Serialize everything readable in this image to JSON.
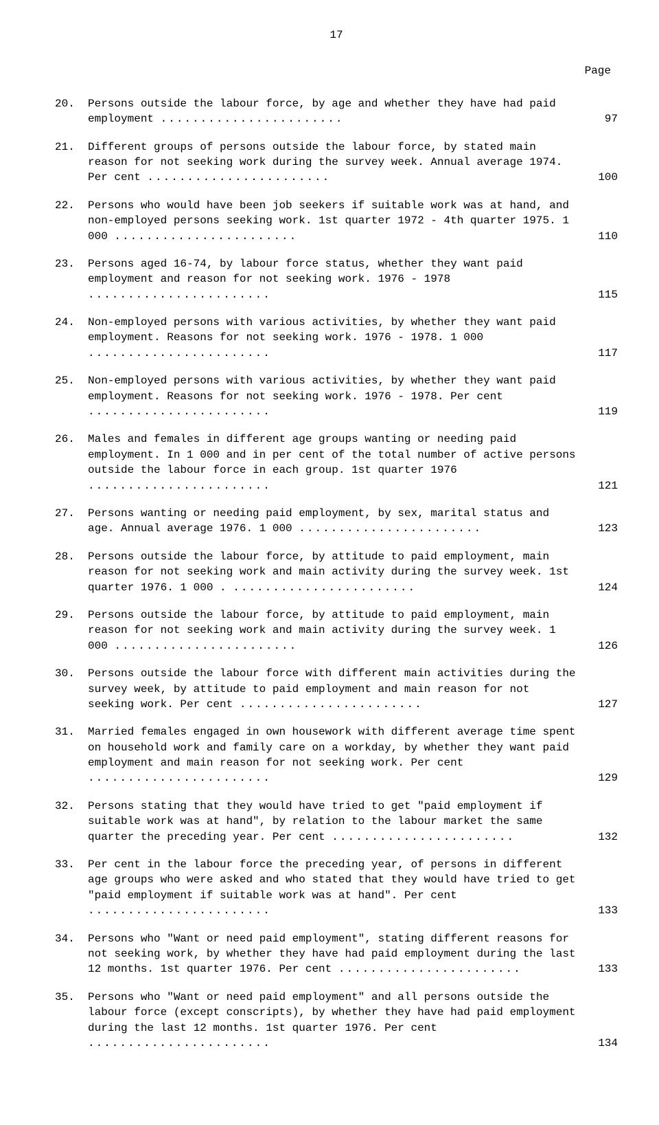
{
  "page_number_top": "17",
  "page_header": "Page",
  "entries": [
    {
      "num": "20.",
      "text": "Persons outside the labour force, by age and whether they have had paid employment",
      "page": "97"
    },
    {
      "num": "21.",
      "text": "Different groups of persons outside the labour force, by stated main reason for not seeking work during the survey week.  Annual average 1974.  Per cent",
      "page": "100"
    },
    {
      "num": "22.",
      "text": "Persons who would have been job seekers if suitable work was at hand, and non-employed persons seeking work.  1st quarter 1972 - 4th quarter 1975.  1 000",
      "page": "110"
    },
    {
      "num": "23.",
      "text": "Persons aged 16-74, by labour force status, whether they want paid employment and reason for not seeking work. 1976 - 1978",
      "page": "115"
    },
    {
      "num": "24.",
      "text": "Non-employed persons with various activities, by whether they want paid employment.  Reasons for not seeking work. 1976 - 1978.  1 000",
      "page": "117"
    },
    {
      "num": "25.",
      "text": "Non-employed persons with various activities, by whether they want paid employment.  Reasons for not seeking work. 1976 - 1978.  Per cent",
      "page": "119"
    },
    {
      "num": "26.",
      "text": "Males and females in different age groups wanting or needing paid employment.  In 1 000 and in per cent of the total number of active persons outside the labour force in each group.  1st quarter 1976",
      "page": "121"
    },
    {
      "num": "27.",
      "text": "Persons wanting or needing paid employment, by sex, marital status and age.  Annual average 1976.  1 000",
      "page": "123"
    },
    {
      "num": "28.",
      "text": "Persons outside the labour force, by attitude to paid employment, main reason for not seeking work and main activity during the survey week.  1st quarter 1976.  1 000 .",
      "page": "124"
    },
    {
      "num": "29.",
      "text": "Persons outside the labour force, by attitude to paid employment, main reason for not seeking work and main activity during the survey week.  1 000",
      "page": "126"
    },
    {
      "num": "30.",
      "text": "Persons outside the labour force with different main activities during the survey week, by attitude to paid employment and main reason for not seeking work.  Per cent",
      "page": "127"
    },
    {
      "num": "31.",
      "text": "Married females engaged in own housework with different average time spent on household work and family care on a workday, by whether they want paid employment and main reason for not seeking work.  Per cent",
      "page": "129"
    },
    {
      "num": "32.",
      "text": "Persons stating that they would have tried to get \"paid employment if suitable work was at hand\", by relation to the labour market the same quarter the preceding year. Per cent",
      "page": "132"
    },
    {
      "num": "33.",
      "text": "Per cent in the labour force the preceding year, of persons in different age groups who were asked and who stated that they would have tried to get \"paid employment if suitable work was at hand\".  Per cent",
      "page": "133"
    },
    {
      "num": "34.",
      "text": "Persons who \"Want or need paid employment\", stating different reasons for not seeking work, by whether they have had paid employment during the last 12 months.  1st quarter 1976. Per cent",
      "page": "133"
    },
    {
      "num": "35.",
      "text": "Persons who \"Want or need paid employment\" and all persons outside the labour force (except conscripts), by whether they have had paid employment during the last 12 months. 1st quarter 1976.  Per cent",
      "page": "134"
    }
  ]
}
